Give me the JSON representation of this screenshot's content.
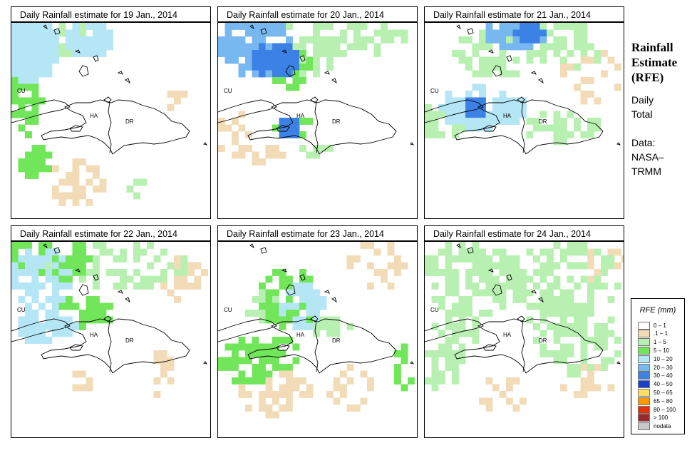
{
  "panels": [
    {
      "title": "Daily Rainfall estimate for  19 Jan., 2014"
    },
    {
      "title": "Daily Rainfall estimate for  20 Jan., 2014"
    },
    {
      "title": "Daily Rainfall estimate for  21 Jan., 2014"
    },
    {
      "title": "Daily Rainfall estimate for  22 Jan., 2014"
    },
    {
      "title": "Daily Rainfall estimate for  23 Jan., 2014"
    },
    {
      "title": "Daily Rainfall estimate for  24 Jan., 2014"
    }
  ],
  "map_labels": {
    "cuba": "CU",
    "haiti": "HA",
    "dr": "DR"
  },
  "side": {
    "title_line1": "Rainfall",
    "title_line2": "Estimate",
    "title_line3": "(RFE)",
    "sub1": "Daily",
    "sub2": "Total",
    "data1": "Data:",
    "data2": "NASA–",
    "data3": "TRMM"
  },
  "legend": {
    "title": "RFE (mm)",
    "items": [
      {
        "label": "0 – 1",
        "color": "#ffffff"
      },
      {
        "label": ".1 – 1",
        "color": "#f2dcb8"
      },
      {
        "label": "1 – 5",
        "color": "#b7f0b1"
      },
      {
        "label": "5 – 10",
        "color": "#72e65a"
      },
      {
        "label": "10 – 20",
        "color": "#b4e6f5"
      },
      {
        "label": "20 – 30",
        "color": "#78b8f0"
      },
      {
        "label": "30 – 40",
        "color": "#3c82e6"
      },
      {
        "label": "40 – 50",
        "color": "#1a3fcf"
      },
      {
        "label": "50 – 65",
        "color": "#ffe066"
      },
      {
        "label": "65 – 80",
        "color": "#ff9900"
      },
      {
        "label": "80 – 100",
        "color": "#e63000"
      },
      {
        "label": "> 100",
        "color": "#9c2a2a"
      },
      {
        "label": "nodata",
        "color": "#c8c8c8"
      }
    ]
  }
}
